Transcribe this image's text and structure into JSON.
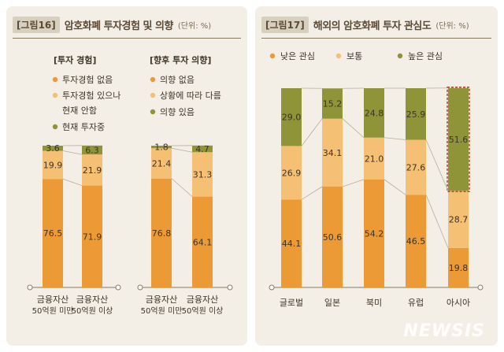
{
  "colors": {
    "low": "#eb9a35",
    "normal": "#f5bf74",
    "high": "#8e9437",
    "text": "#3e3426"
  },
  "watermark": "NEWSIS",
  "fig16": {
    "badge": "[그림16]",
    "title": "암호화폐 투자경험 및 의향",
    "unit": "(단위: %)",
    "legend_left": {
      "heading": "[투자 경험]",
      "items": [
        "투자경험 없음",
        "투자경험 있으나",
        "현재 안함",
        "현재 투자중"
      ]
    },
    "legend_right": {
      "heading": "[향후 투자 의향]",
      "items": [
        "의향 없음",
        "상황에 따라 다름",
        "의향 있음"
      ]
    }
  },
  "fig17": {
    "badge": "[그림17]",
    "title": "해외의 암호화폐 투자 관심도",
    "unit": "(단위: %)",
    "legend": [
      "낮은 관심",
      "보통",
      "높은 관심"
    ]
  },
  "chart_data": [
    {
      "type": "bar",
      "stacked": true,
      "title": "[투자 경험]",
      "categories": [
        [
          "금융자산",
          "50억원 미만"
        ],
        [
          "금융자산",
          "50억원 이상"
        ]
      ],
      "series": [
        {
          "name": "투자경험 없음",
          "color": "#eb9a35",
          "values": [
            76.5,
            71.9
          ]
        },
        {
          "name": "투자경험 있으나 현재 안함",
          "color": "#f5bf74",
          "values": [
            19.9,
            21.9
          ]
        },
        {
          "name": "현재 투자중",
          "color": "#8e9437",
          "values": [
            3.6,
            6.3
          ]
        }
      ],
      "ylim": [
        0,
        100
      ]
    },
    {
      "type": "bar",
      "stacked": true,
      "title": "[향후 투자 의향]",
      "categories": [
        [
          "금융자산",
          "50억원 미만"
        ],
        [
          "금융자산",
          "50억원 이상"
        ]
      ],
      "series": [
        {
          "name": "의향 없음",
          "color": "#eb9a35",
          "values": [
            76.8,
            64.1
          ]
        },
        {
          "name": "상황에 따라 다름",
          "color": "#f5bf74",
          "values": [
            21.4,
            31.3
          ]
        },
        {
          "name": "의향 있음",
          "color": "#8e9437",
          "values": [
            1.8,
            4.7
          ]
        }
      ],
      "ylim": [
        0,
        100
      ]
    },
    {
      "type": "bar",
      "stacked": true,
      "title": "해외의 암호화폐 투자 관심도",
      "categories": [
        "글로벌",
        "일본",
        "북미",
        "유럽",
        "아시아"
      ],
      "series": [
        {
          "name": "낮은 관심",
          "color": "#eb9a35",
          "values": [
            44.1,
            50.6,
            54.2,
            46.5,
            19.8
          ]
        },
        {
          "name": "보통",
          "color": "#f5bf74",
          "values": [
            26.9,
            34.1,
            21.0,
            27.6,
            28.7
          ]
        },
        {
          "name": "높은 관심",
          "color": "#8e9437",
          "values": [
            29.0,
            15.2,
            24.8,
            25.9,
            51.6
          ]
        }
      ],
      "ylim": [
        0,
        100
      ],
      "highlight": "아시아"
    }
  ]
}
